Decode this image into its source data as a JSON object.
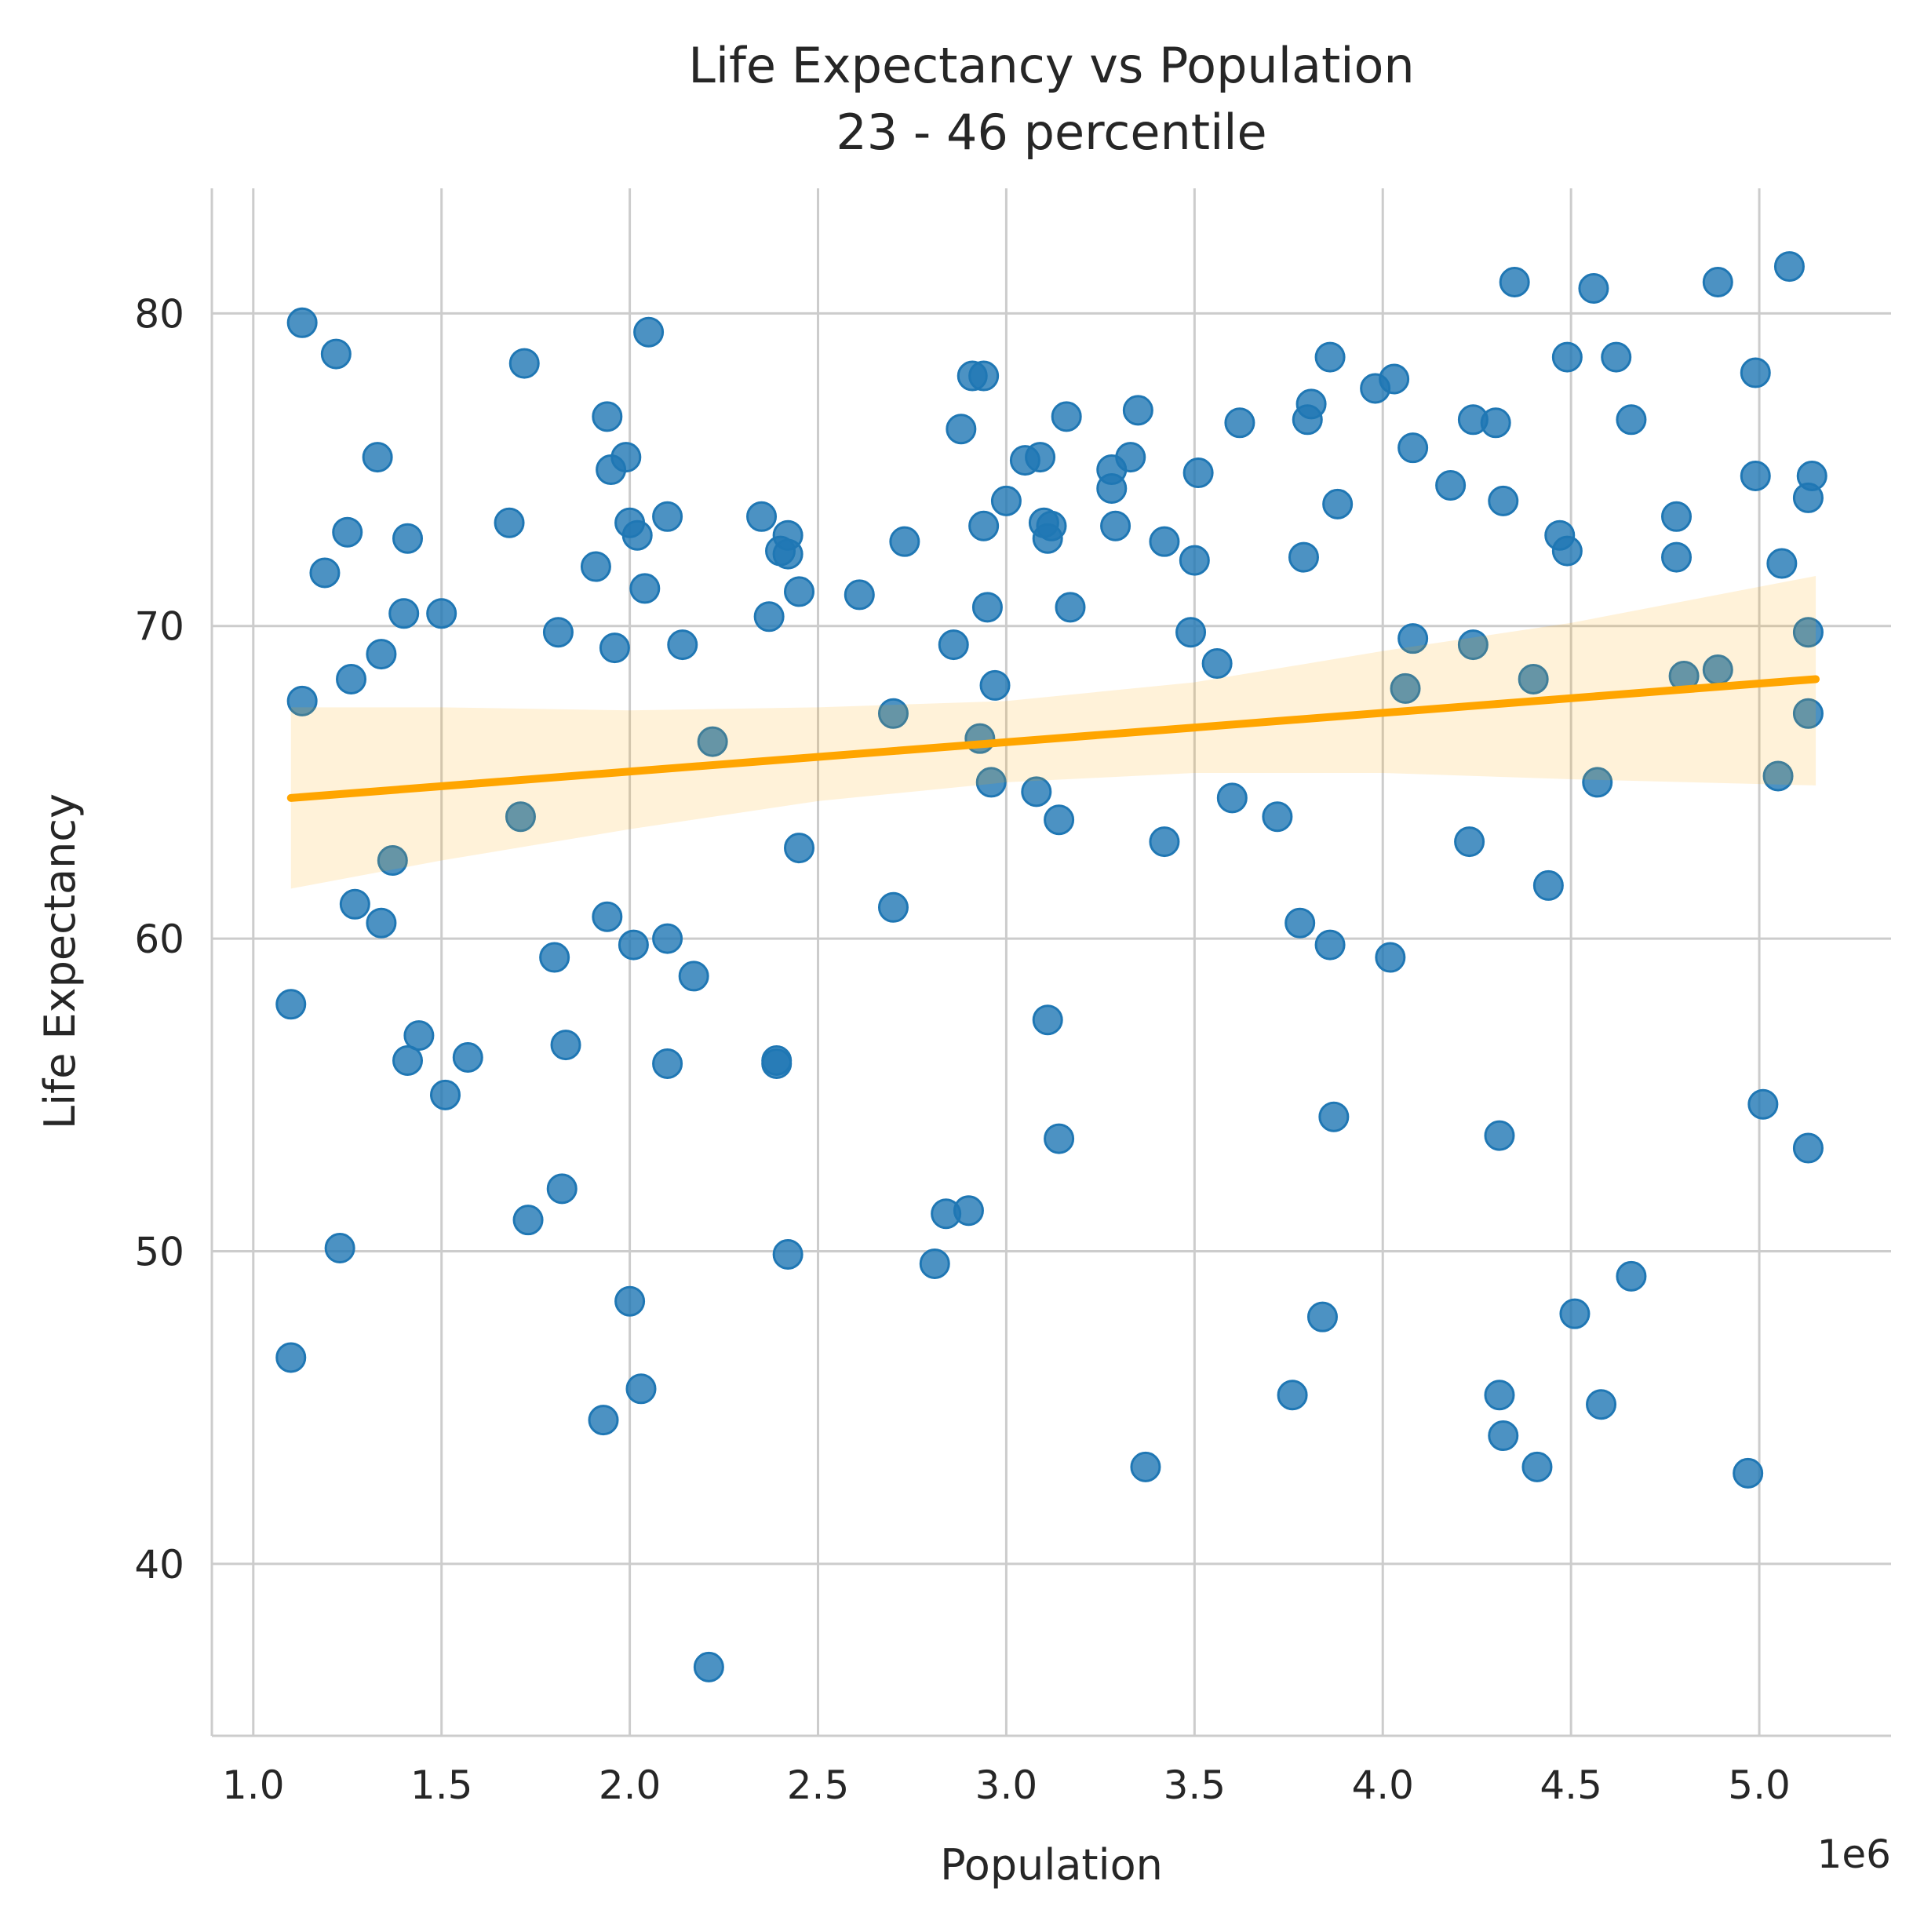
{
  "chart_data": {
    "type": "scatter",
    "title": "Life Expectancy vs Population",
    "subtitle": "23 - 46 percentile",
    "xlabel": "Population",
    "ylabel": "Life Expectancy",
    "x_offset_label": "1e6",
    "xlim": [
      0.89,
      5.35
    ],
    "ylim": [
      34.5,
      84
    ],
    "x_ticks": [
      1.0,
      1.5,
      2.0,
      2.5,
      3.0,
      3.5,
      4.0,
      4.5,
      5.0
    ],
    "x_tick_labels": [
      "1.0",
      "1.5",
      "2.0",
      "2.5",
      "3.0",
      "3.5",
      "4.0",
      "4.5",
      "5.0"
    ],
    "y_ticks": [
      40,
      50,
      60,
      70,
      80
    ],
    "y_tick_labels": [
      "40",
      "50",
      "60",
      "70",
      "80"
    ],
    "grid": true,
    "point_color": "#1f77b4",
    "regression_color": "#ffa500",
    "regression": {
      "x": [
        1.1,
        5.15
      ],
      "y": [
        64.5,
        68.3
      ]
    },
    "confidence_band": {
      "x": [
        1.1,
        1.5,
        2.0,
        2.5,
        3.0,
        3.5,
        4.0,
        4.5,
        5.15
      ],
      "upper": [
        67.4,
        67.4,
        67.3,
        67.4,
        67.6,
        68.2,
        69.2,
        70.1,
        71.6
      ],
      "lower": [
        61.6,
        62.5,
        63.5,
        64.4,
        65.0,
        65.3,
        65.3,
        65.1,
        64.9
      ]
    },
    "series": [
      {
        "points": [
          [
            1.1,
            57.9
          ],
          [
            1.1,
            46.6
          ],
          [
            1.13,
            67.6
          ],
          [
            1.13,
            79.7
          ],
          [
            1.19,
            71.7
          ],
          [
            1.22,
            78.7
          ],
          [
            1.23,
            50.1
          ],
          [
            1.25,
            73.0
          ],
          [
            1.26,
            68.3
          ],
          [
            1.27,
            61.1
          ],
          [
            1.33,
            75.4
          ],
          [
            1.34,
            69.1
          ],
          [
            1.34,
            60.5
          ],
          [
            1.37,
            62.5
          ],
          [
            1.4,
            70.4
          ],
          [
            1.41,
            72.8
          ],
          [
            1.41,
            56.1
          ],
          [
            1.44,
            56.9
          ],
          [
            1.5,
            70.4
          ],
          [
            1.51,
            55.0
          ],
          [
            1.57,
            56.2
          ],
          [
            1.68,
            73.3
          ],
          [
            1.71,
            63.9
          ],
          [
            1.72,
            78.4
          ],
          [
            1.73,
            51.0
          ],
          [
            1.8,
            59.4
          ],
          [
            1.81,
            69.8
          ],
          [
            1.82,
            52.0
          ],
          [
            1.83,
            56.6
          ],
          [
            1.91,
            71.9
          ],
          [
            1.93,
            44.6
          ],
          [
            1.94,
            60.7
          ],
          [
            1.94,
            76.7
          ],
          [
            1.95,
            75.0
          ],
          [
            1.96,
            69.3
          ],
          [
            1.99,
            75.4
          ],
          [
            2.0,
            73.3
          ],
          [
            2.0,
            48.4
          ],
          [
            2.01,
            59.8
          ],
          [
            2.02,
            72.9
          ],
          [
            2.03,
            45.6
          ],
          [
            2.04,
            71.2
          ],
          [
            2.05,
            79.4
          ],
          [
            2.1,
            73.5
          ],
          [
            2.1,
            60.0
          ],
          [
            2.1,
            56.0
          ],
          [
            2.14,
            69.4
          ],
          [
            2.17,
            58.8
          ],
          [
            2.21,
            36.7
          ],
          [
            2.22,
            66.3
          ],
          [
            2.35,
            73.5
          ],
          [
            2.37,
            70.3
          ],
          [
            2.39,
            56.0
          ],
          [
            2.39,
            56.1
          ],
          [
            2.4,
            72.4
          ],
          [
            2.42,
            72.3
          ],
          [
            2.42,
            49.9
          ],
          [
            2.42,
            72.9
          ],
          [
            2.45,
            71.1
          ],
          [
            2.45,
            62.9
          ],
          [
            2.61,
            71.0
          ],
          [
            2.7,
            61.0
          ],
          [
            2.7,
            67.2
          ],
          [
            2.73,
            72.7
          ],
          [
            2.81,
            49.6
          ],
          [
            2.84,
            51.2
          ],
          [
            2.86,
            69.4
          ],
          [
            2.88,
            76.3
          ],
          [
            2.9,
            51.3
          ],
          [
            2.91,
            78.0
          ],
          [
            2.93,
            66.4
          ],
          [
            2.94,
            78.0
          ],
          [
            2.94,
            73.2
          ],
          [
            2.95,
            70.6
          ],
          [
            2.96,
            65.0
          ],
          [
            2.97,
            68.1
          ],
          [
            3.0,
            74.0
          ],
          [
            3.05,
            75.3
          ],
          [
            3.08,
            64.7
          ],
          [
            3.09,
            75.4
          ],
          [
            3.1,
            73.3
          ],
          [
            3.11,
            57.4
          ],
          [
            3.11,
            72.8
          ],
          [
            3.12,
            73.2
          ],
          [
            3.14,
            53.6
          ],
          [
            3.14,
            63.8
          ],
          [
            3.16,
            76.7
          ],
          [
            3.17,
            70.6
          ],
          [
            3.28,
            74.4
          ],
          [
            3.28,
            75.0
          ],
          [
            3.29,
            73.2
          ],
          [
            3.33,
            75.4
          ],
          [
            3.35,
            76.9
          ],
          [
            3.37,
            43.1
          ],
          [
            3.42,
            72.7
          ],
          [
            3.42,
            63.1
          ],
          [
            3.49,
            69.8
          ],
          [
            3.5,
            72.1
          ],
          [
            3.51,
            74.9
          ],
          [
            3.56,
            68.8
          ],
          [
            3.6,
            64.5
          ],
          [
            3.62,
            76.5
          ],
          [
            3.72,
            63.9
          ],
          [
            3.76,
            45.4
          ],
          [
            3.78,
            60.5
          ],
          [
            3.79,
            72.2
          ],
          [
            3.8,
            76.6
          ],
          [
            3.81,
            77.1
          ],
          [
            3.84,
            47.9
          ],
          [
            3.86,
            78.6
          ],
          [
            3.86,
            59.8
          ],
          [
            3.87,
            54.3
          ],
          [
            3.88,
            73.9
          ],
          [
            3.98,
            77.6
          ],
          [
            4.02,
            59.4
          ],
          [
            4.03,
            77.9
          ],
          [
            4.06,
            68.0
          ],
          [
            4.08,
            69.6
          ],
          [
            4.08,
            75.7
          ],
          [
            4.18,
            74.5
          ],
          [
            4.23,
            63.1
          ],
          [
            4.24,
            69.4
          ],
          [
            4.24,
            76.6
          ],
          [
            4.3,
            76.5
          ],
          [
            4.31,
            45.4
          ],
          [
            4.31,
            53.7
          ],
          [
            4.32,
            74.0
          ],
          [
            4.32,
            44.1
          ],
          [
            4.35,
            81.0
          ],
          [
            4.4,
            68.3
          ],
          [
            4.41,
            43.1
          ],
          [
            4.44,
            61.7
          ],
          [
            4.47,
            72.9
          ],
          [
            4.49,
            72.4
          ],
          [
            4.49,
            78.6
          ],
          [
            4.51,
            48.0
          ],
          [
            4.56,
            80.8
          ],
          [
            4.57,
            65.0
          ],
          [
            4.58,
            45.1
          ],
          [
            4.62,
            78.6
          ],
          [
            4.66,
            76.6
          ],
          [
            4.66,
            49.2
          ],
          [
            4.78,
            73.5
          ],
          [
            4.78,
            72.2
          ],
          [
            4.8,
            68.4
          ],
          [
            4.89,
            81.0
          ],
          [
            4.89,
            68.6
          ],
          [
            4.97,
            42.9
          ],
          [
            4.99,
            74.8
          ],
          [
            4.99,
            78.1
          ],
          [
            5.01,
            54.7
          ],
          [
            5.05,
            65.2
          ],
          [
            5.06,
            72.0
          ],
          [
            5.08,
            81.5
          ],
          [
            5.13,
            74.1
          ],
          [
            5.13,
            67.2
          ],
          [
            5.13,
            69.8
          ],
          [
            5.13,
            53.3
          ],
          [
            5.14,
            74.8
          ]
        ]
      }
    ]
  }
}
